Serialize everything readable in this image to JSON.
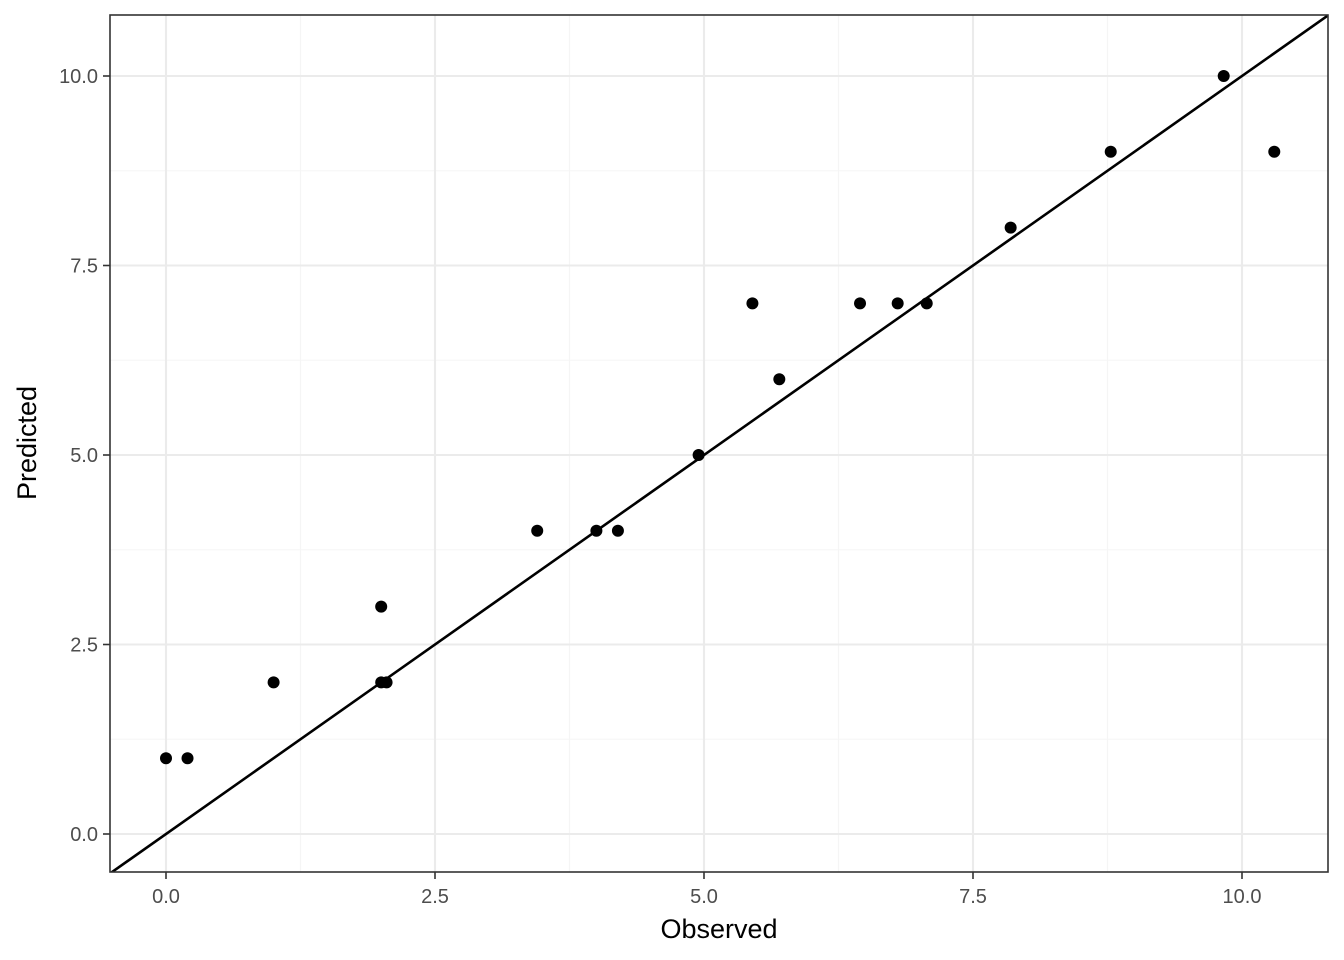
{
  "chart_data": {
    "type": "scatter",
    "title": "",
    "xlabel": "Observed",
    "ylabel": "Predicted",
    "xlim": [
      -0.5,
      10.8
    ],
    "ylim": [
      -0.5,
      10.8
    ],
    "x_ticks": [
      0.0,
      2.5,
      5.0,
      7.5,
      10.0
    ],
    "x_tick_labels": [
      "0.0",
      "2.5",
      "5.0",
      "7.5",
      "10.0"
    ],
    "y_ticks": [
      0.0,
      2.5,
      5.0,
      7.5,
      10.0
    ],
    "y_tick_labels": [
      "0.0",
      "2.5",
      "5.0",
      "7.5",
      "10.0"
    ],
    "grid": true,
    "theme": "bw",
    "reference_line": {
      "type": "identity",
      "slope": 1,
      "intercept": 0,
      "color": "#000000"
    },
    "points": [
      {
        "x": 0.0,
        "y": 1
      },
      {
        "x": 0.2,
        "y": 1
      },
      {
        "x": 1.0,
        "y": 2
      },
      {
        "x": 2.0,
        "y": 3
      },
      {
        "x": 2.0,
        "y": 2
      },
      {
        "x": 2.05,
        "y": 2
      },
      {
        "x": 3.45,
        "y": 4
      },
      {
        "x": 4.0,
        "y": 4
      },
      {
        "x": 4.2,
        "y": 4
      },
      {
        "x": 4.95,
        "y": 5
      },
      {
        "x": 5.45,
        "y": 7
      },
      {
        "x": 5.7,
        "y": 6
      },
      {
        "x": 6.45,
        "y": 7
      },
      {
        "x": 6.8,
        "y": 7
      },
      {
        "x": 7.07,
        "y": 7
      },
      {
        "x": 7.85,
        "y": 8
      },
      {
        "x": 8.78,
        "y": 9
      },
      {
        "x": 9.83,
        "y": 10
      },
      {
        "x": 10.3,
        "y": 9
      }
    ],
    "point_color": "#000000"
  }
}
